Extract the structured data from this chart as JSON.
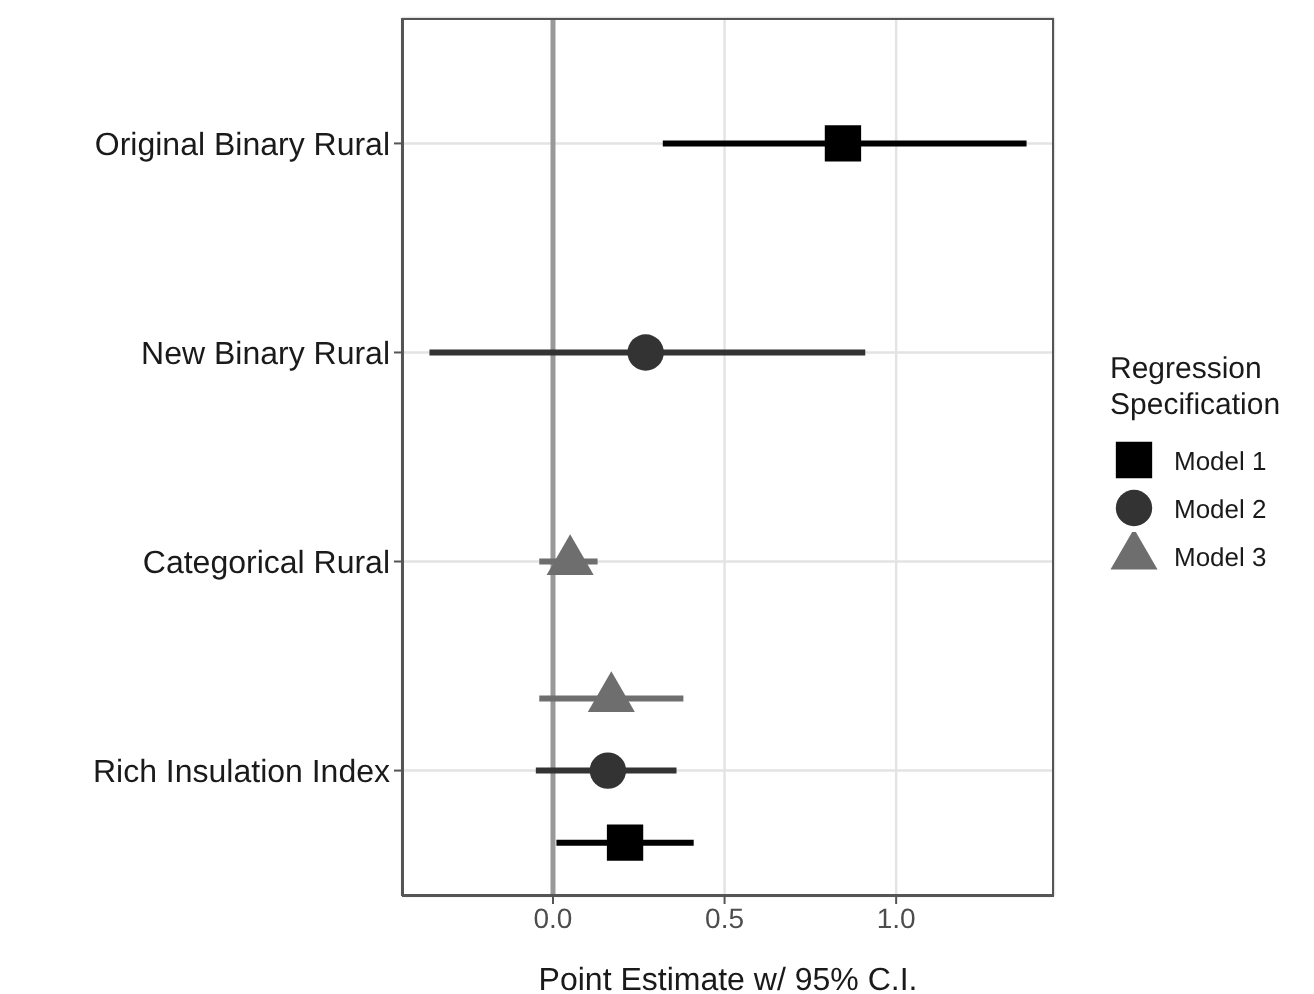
{
  "chart_data": {
    "type": "scatter",
    "orientation": "horizontal",
    "xlabel": "Point Estimate w/ 95% C.I.",
    "legend_title": "Regression Specification",
    "categories": [
      "Original Binary Rural",
      "New Binary Rural",
      "Categorical Rural",
      "Rich Insulation Index"
    ],
    "series": [
      {
        "name": "Model 1",
        "color": "#000000",
        "marker": "square",
        "values": [
          0.845,
          null,
          null,
          0.21
        ],
        "errors": [
          [
            0.32,
            1.38
          ],
          null,
          null,
          [
            0.01,
            0.41
          ]
        ]
      },
      {
        "name": "Model 2",
        "color": "#333333",
        "marker": "circle",
        "values": [
          null,
          0.27,
          null,
          0.16
        ],
        "errors": [
          null,
          [
            -0.36,
            0.91
          ],
          null,
          [
            -0.05,
            0.36
          ]
        ]
      },
      {
        "name": "Model 3",
        "color": "#6e6e6e",
        "marker": "triangle",
        "values": [
          null,
          null,
          0.05,
          0.17
        ],
        "errors": [
          null,
          null,
          [
            -0.04,
            0.13
          ],
          [
            -0.04,
            0.38
          ]
        ]
      }
    ],
    "xlim": [
      -0.44,
      1.46
    ],
    "xticks": [
      {
        "value": 0,
        "label": "0.0"
      },
      0.5,
      {
        "value": 1,
        "label": "1.0"
      }
    ],
    "ref_lines": [
      {
        "axis": "x",
        "value": 0,
        "color": "#999999"
      }
    ],
    "grid": true,
    "legend": "right"
  }
}
